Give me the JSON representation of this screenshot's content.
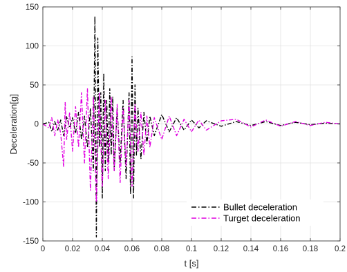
{
  "chart_data": {
    "type": "line",
    "title": "",
    "xlabel": "t [s]",
    "ylabel": "Deceleration[g]",
    "xlim": [
      0,
      0.2
    ],
    "ylim": [
      -150,
      150
    ],
    "x_ticks": [
      "0",
      "0.02",
      "0.04",
      "0.06",
      "0.08",
      "0.1",
      "0.12",
      "0.14",
      "0.16",
      "0.18",
      "0.2"
    ],
    "y_ticks": [
      "150",
      "100",
      "50",
      "0",
      "-50",
      "-100",
      "-150"
    ],
    "grid": true,
    "legend_position": "bottom-right",
    "series": [
      {
        "name": "Bullet deceleration",
        "color": "#000000",
        "line_style": "dash-dot",
        "x": [
          0,
          0.004,
          0.006,
          0.008,
          0.01,
          0.012,
          0.014,
          0.016,
          0.018,
          0.02,
          0.022,
          0.024,
          0.026,
          0.028,
          0.03,
          0.032,
          0.034,
          0.035,
          0.036,
          0.037,
          0.038,
          0.039,
          0.04,
          0.041,
          0.042,
          0.043,
          0.044,
          0.045,
          0.046,
          0.047,
          0.048,
          0.05,
          0.052,
          0.054,
          0.056,
          0.058,
          0.059,
          0.06,
          0.061,
          0.062,
          0.063,
          0.064,
          0.066,
          0.068,
          0.07,
          0.072,
          0.075,
          0.08,
          0.085,
          0.09,
          0.095,
          0.1,
          0.105,
          0.11,
          0.12,
          0.13,
          0.14,
          0.15,
          0.16,
          0.17,
          0.18,
          0.19,
          0.2
        ],
        "y": [
          0,
          2,
          -10,
          3,
          -8,
          5,
          -15,
          10,
          -5,
          8,
          -12,
          15,
          -20,
          10,
          -30,
          20,
          -60,
          138,
          -145,
          110,
          -30,
          40,
          -95,
          65,
          -60,
          30,
          -50,
          45,
          -40,
          35,
          -60,
          20,
          -50,
          30,
          -70,
          40,
          -90,
          86,
          -95,
          50,
          -40,
          20,
          -45,
          15,
          -25,
          10,
          -15,
          12,
          -10,
          8,
          -8,
          5,
          -5,
          4,
          -3,
          3,
          -2,
          3,
          -2,
          2,
          -1,
          1,
          0
        ]
      },
      {
        "name": "Turget deceleration",
        "color": "#e100e1",
        "line_style": "dash-dot",
        "x": [
          0,
          0.004,
          0.006,
          0.008,
          0.01,
          0.012,
          0.014,
          0.015,
          0.016,
          0.018,
          0.02,
          0.022,
          0.024,
          0.026,
          0.028,
          0.03,
          0.032,
          0.034,
          0.036,
          0.038,
          0.04,
          0.042,
          0.044,
          0.046,
          0.048,
          0.05,
          0.052,
          0.054,
          0.056,
          0.058,
          0.06,
          0.062,
          0.064,
          0.066,
          0.068,
          0.07,
          0.072,
          0.075,
          0.08,
          0.085,
          0.09,
          0.095,
          0.1,
          0.105,
          0.11,
          0.12,
          0.13,
          0.14,
          0.15,
          0.16,
          0.17,
          0.18,
          0.19,
          0.2
        ],
        "y": [
          0,
          -5,
          8,
          -15,
          5,
          -12,
          -55,
          28,
          -20,
          15,
          -35,
          22,
          -30,
          40,
          -50,
          45,
          -85,
          35,
          -100,
          40,
          -80,
          30,
          -70,
          35,
          -60,
          25,
          -75,
          20,
          -55,
          30,
          -80,
          25,
          -35,
          15,
          -40,
          10,
          -30,
          8,
          -20,
          10,
          -15,
          6,
          -10,
          5,
          -8,
          4,
          6,
          -4,
          5,
          -3,
          3,
          -2,
          2,
          0
        ]
      }
    ]
  }
}
